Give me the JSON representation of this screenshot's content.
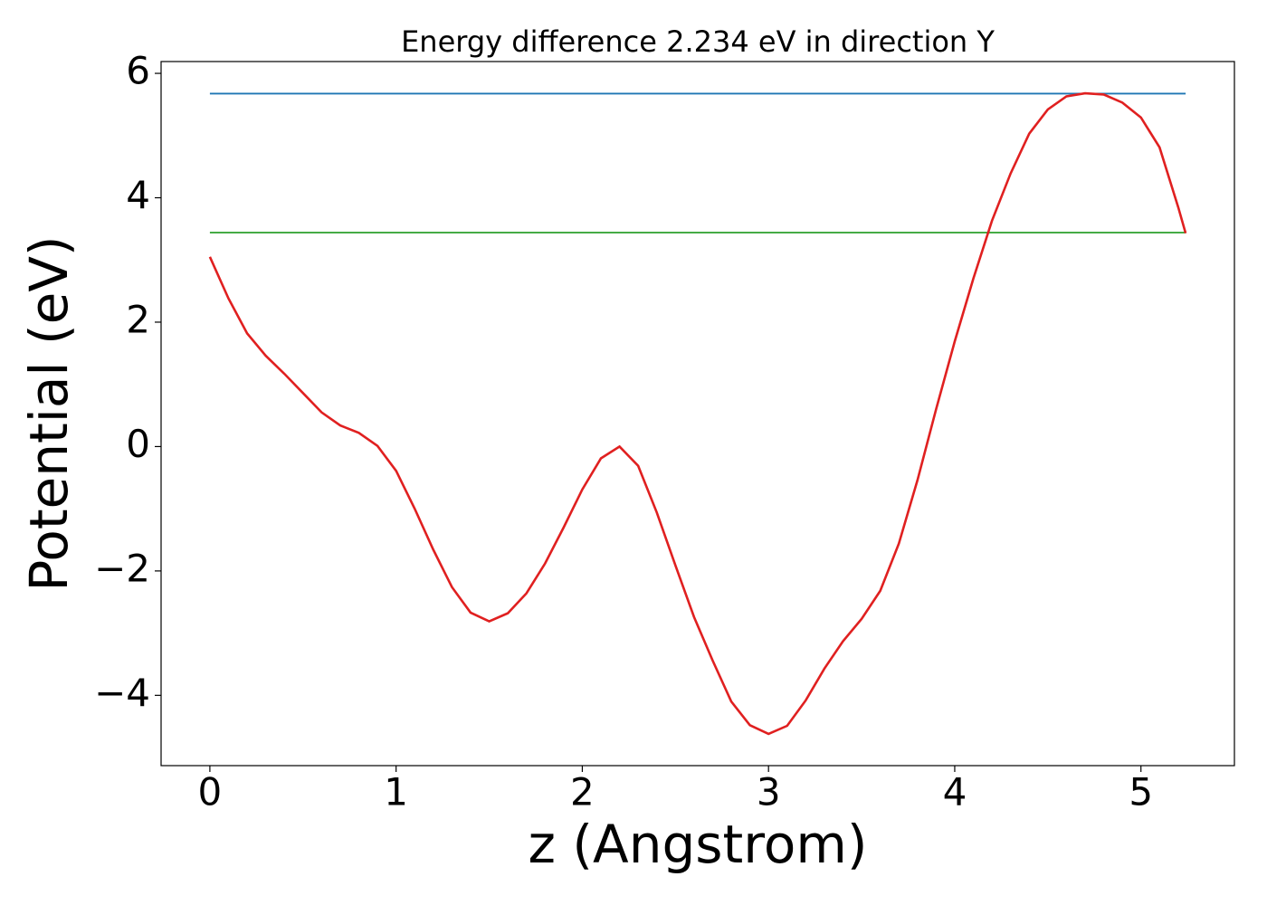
{
  "chart_data": {
    "type": "line",
    "title": "Energy difference 2.234 eV in direction Y",
    "x_label": "z (Angstrom)",
    "y_label": "Potential (eV)",
    "xlim": [
      -0.262,
      5.502
    ],
    "ylim": [
      -5.13,
      6.19
    ],
    "xticks": [
      0,
      1,
      2,
      3,
      4,
      5
    ],
    "yticks": [
      {
        "value": -4,
        "label": "−4"
      },
      {
        "value": -2,
        "label": "−2"
      },
      0,
      2,
      4,
      6
    ],
    "grid": false,
    "series": [
      {
        "color": "#1f77b4",
        "x": [
          0,
          5.24
        ],
        "values": [
          5.674,
          5.674
        ]
      },
      {
        "color": "#2ca02c",
        "x": [
          0,
          5.24
        ],
        "values": [
          3.44,
          3.44
        ]
      },
      {
        "color": "#e02020",
        "x": [
          0,
          0.1,
          0.2,
          0.3,
          0.4,
          0.5,
          0.6,
          0.7,
          0.8,
          0.9,
          1.0,
          1.1,
          1.2,
          1.3,
          1.4,
          1.5,
          1.6,
          1.7,
          1.8,
          1.9,
          2.0,
          2.1,
          2.2,
          2.3,
          2.4,
          2.5,
          2.6,
          2.7,
          2.8,
          2.9,
          3.0,
          3.1,
          3.2,
          3.3,
          3.4,
          3.5,
          3.6,
          3.7,
          3.8,
          3.9,
          4.0,
          4.1,
          4.2,
          4.3,
          4.4,
          4.5,
          4.6,
          4.7,
          4.8,
          4.9,
          5.0,
          5.1,
          5.2,
          5.24
        ],
        "values": [
          3.05,
          2.38,
          1.82,
          1.46,
          1.17,
          0.86,
          0.55,
          0.34,
          0.22,
          0.01,
          -0.39,
          -1.0,
          -1.66,
          -2.26,
          -2.67,
          -2.81,
          -2.68,
          -2.36,
          -1.88,
          -1.3,
          -0.69,
          -0.19,
          0.0,
          -0.31,
          -1.06,
          -1.91,
          -2.74,
          -3.44,
          -4.1,
          -4.48,
          -4.62,
          -4.49,
          -4.08,
          -3.57,
          -3.13,
          -2.77,
          -2.32,
          -1.56,
          -0.54,
          0.6,
          1.69,
          2.7,
          3.63,
          4.39,
          5.03,
          5.42,
          5.63,
          5.68,
          5.66,
          5.53,
          5.29,
          4.81,
          3.85,
          3.43
        ]
      }
    ]
  }
}
